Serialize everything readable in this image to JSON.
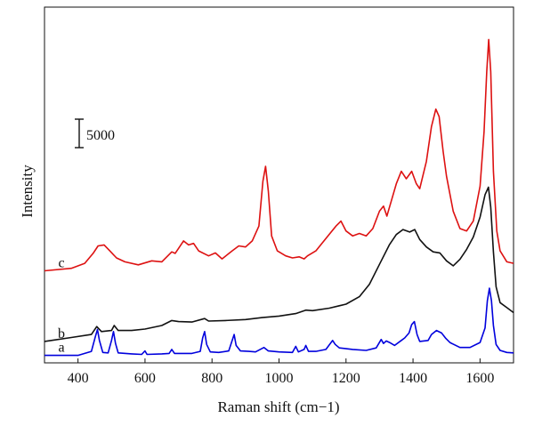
{
  "chart_data": {
    "type": "line",
    "title": "",
    "xlabel": "Raman shift (cm−1)",
    "ylabel": "Intensity",
    "xlim": [
      300,
      1700
    ],
    "x_ticks": [
      "400",
      "600",
      "800",
      "1000",
      "1200",
      "1400",
      "1600"
    ],
    "scale_bar": {
      "label": "5000",
      "value": 5000
    },
    "grid": false,
    "legend": "none",
    "series": [
      {
        "name": "a",
        "color": "#0000dd",
        "offset": 0,
        "points": [
          [
            300,
            0
          ],
          [
            400,
            0
          ],
          [
            440,
            800
          ],
          [
            452,
            3800
          ],
          [
            458,
            5200
          ],
          [
            464,
            3000
          ],
          [
            474,
            600
          ],
          [
            490,
            500
          ],
          [
            500,
            3000
          ],
          [
            506,
            4800
          ],
          [
            512,
            2400
          ],
          [
            520,
            500
          ],
          [
            560,
            300
          ],
          [
            590,
            200
          ],
          [
            600,
            900
          ],
          [
            606,
            200
          ],
          [
            650,
            300
          ],
          [
            672,
            400
          ],
          [
            680,
            1200
          ],
          [
            688,
            400
          ],
          [
            740,
            400
          ],
          [
            765,
            800
          ],
          [
            772,
            3500
          ],
          [
            778,
            4800
          ],
          [
            784,
            2200
          ],
          [
            795,
            700
          ],
          [
            820,
            600
          ],
          [
            850,
            900
          ],
          [
            862,
            3400
          ],
          [
            866,
            4200
          ],
          [
            872,
            2000
          ],
          [
            885,
            900
          ],
          [
            910,
            800
          ],
          [
            930,
            700
          ],
          [
            955,
            1600
          ],
          [
            968,
            900
          ],
          [
            1000,
            700
          ],
          [
            1040,
            600
          ],
          [
            1050,
            1800
          ],
          [
            1058,
            700
          ],
          [
            1075,
            1200
          ],
          [
            1080,
            2000
          ],
          [
            1088,
            800
          ],
          [
            1110,
            800
          ],
          [
            1140,
            1200
          ],
          [
            1160,
            3000
          ],
          [
            1168,
            2200
          ],
          [
            1180,
            1500
          ],
          [
            1195,
            1400
          ],
          [
            1220,
            1200
          ],
          [
            1260,
            1000
          ],
          [
            1290,
            1500
          ],
          [
            1305,
            3200
          ],
          [
            1312,
            2400
          ],
          [
            1320,
            2900
          ],
          [
            1330,
            2600
          ],
          [
            1345,
            2000
          ],
          [
            1365,
            3000
          ],
          [
            1375,
            3500
          ],
          [
            1388,
            4500
          ],
          [
            1396,
            6200
          ],
          [
            1404,
            6800
          ],
          [
            1412,
            4200
          ],
          [
            1420,
            2800
          ],
          [
            1445,
            3000
          ],
          [
            1455,
            4200
          ],
          [
            1470,
            5000
          ],
          [
            1485,
            4500
          ],
          [
            1498,
            3400
          ],
          [
            1510,
            2600
          ],
          [
            1540,
            1600
          ],
          [
            1570,
            1600
          ],
          [
            1600,
            2600
          ],
          [
            1615,
            5500
          ],
          [
            1622,
            11000
          ],
          [
            1628,
            13500
          ],
          [
            1634,
            11000
          ],
          [
            1640,
            6000
          ],
          [
            1648,
            2200
          ],
          [
            1660,
            1000
          ],
          [
            1680,
            600
          ],
          [
            1700,
            500
          ]
        ]
      },
      {
        "name": "b",
        "color": "#111111",
        "offset": 2800,
        "points": [
          [
            300,
            0
          ],
          [
            380,
            800
          ],
          [
            440,
            1400
          ],
          [
            456,
            3000
          ],
          [
            470,
            2000
          ],
          [
            500,
            2200
          ],
          [
            508,
            3200
          ],
          [
            520,
            2200
          ],
          [
            560,
            2200
          ],
          [
            600,
            2500
          ],
          [
            650,
            3200
          ],
          [
            680,
            4200
          ],
          [
            700,
            4000
          ],
          [
            740,
            3900
          ],
          [
            778,
            4600
          ],
          [
            790,
            4100
          ],
          [
            840,
            4200
          ],
          [
            900,
            4400
          ],
          [
            950,
            4800
          ],
          [
            1000,
            5100
          ],
          [
            1050,
            5600
          ],
          [
            1080,
            6300
          ],
          [
            1100,
            6200
          ],
          [
            1150,
            6700
          ],
          [
            1200,
            7500
          ],
          [
            1240,
            9000
          ],
          [
            1270,
            11500
          ],
          [
            1300,
            15500
          ],
          [
            1330,
            19500
          ],
          [
            1350,
            21500
          ],
          [
            1370,
            22500
          ],
          [
            1390,
            22000
          ],
          [
            1405,
            22500
          ],
          [
            1420,
            20500
          ],
          [
            1440,
            19000
          ],
          [
            1460,
            18000
          ],
          [
            1480,
            17800
          ],
          [
            1500,
            16200
          ],
          [
            1520,
            15200
          ],
          [
            1540,
            16500
          ],
          [
            1560,
            18500
          ],
          [
            1580,
            21000
          ],
          [
            1600,
            25000
          ],
          [
            1615,
            29500
          ],
          [
            1625,
            31000
          ],
          [
            1632,
            27000
          ],
          [
            1640,
            18000
          ],
          [
            1648,
            11000
          ],
          [
            1660,
            7800
          ],
          [
            1680,
            6800
          ],
          [
            1700,
            5800
          ]
        ]
      },
      {
        "name": "c",
        "color": "#dd1111",
        "offset": 17000,
        "points": [
          [
            300,
            0
          ],
          [
            380,
            500
          ],
          [
            420,
            1500
          ],
          [
            445,
            3500
          ],
          [
            460,
            5000
          ],
          [
            478,
            5200
          ],
          [
            495,
            4000
          ],
          [
            515,
            2600
          ],
          [
            540,
            1800
          ],
          [
            580,
            1200
          ],
          [
            620,
            2000
          ],
          [
            650,
            1800
          ],
          [
            680,
            3800
          ],
          [
            690,
            3500
          ],
          [
            700,
            4500
          ],
          [
            715,
            6000
          ],
          [
            730,
            5200
          ],
          [
            745,
            5500
          ],
          [
            760,
            4000
          ],
          [
            790,
            3000
          ],
          [
            810,
            3600
          ],
          [
            830,
            2400
          ],
          [
            860,
            4000
          ],
          [
            880,
            5000
          ],
          [
            900,
            4800
          ],
          [
            920,
            6000
          ],
          [
            940,
            9000
          ],
          [
            952,
            18000
          ],
          [
            960,
            21000
          ],
          [
            968,
            16000
          ],
          [
            978,
            7000
          ],
          [
            995,
            4000
          ],
          [
            1020,
            3000
          ],
          [
            1040,
            2600
          ],
          [
            1060,
            2800
          ],
          [
            1075,
            2400
          ],
          [
            1085,
            3000
          ],
          [
            1110,
            4000
          ],
          [
            1140,
            6500
          ],
          [
            1170,
            9000
          ],
          [
            1185,
            10000
          ],
          [
            1200,
            8000
          ],
          [
            1220,
            7000
          ],
          [
            1240,
            7500
          ],
          [
            1260,
            7000
          ],
          [
            1280,
            8500
          ],
          [
            1300,
            12000
          ],
          [
            1312,
            13000
          ],
          [
            1322,
            11000
          ],
          [
            1335,
            14000
          ],
          [
            1350,
            17500
          ],
          [
            1365,
            20000
          ],
          [
            1380,
            18500
          ],
          [
            1396,
            20000
          ],
          [
            1410,
            17500
          ],
          [
            1420,
            16500
          ],
          [
            1440,
            22000
          ],
          [
            1455,
            29000
          ],
          [
            1468,
            32500
          ],
          [
            1478,
            31000
          ],
          [
            1490,
            24000
          ],
          [
            1500,
            19000
          ],
          [
            1520,
            12000
          ],
          [
            1540,
            8500
          ],
          [
            1560,
            8000
          ],
          [
            1580,
            10000
          ],
          [
            1600,
            17000
          ],
          [
            1612,
            28000
          ],
          [
            1620,
            40000
          ],
          [
            1626,
            46500
          ],
          [
            1632,
            40000
          ],
          [
            1640,
            20000
          ],
          [
            1650,
            8000
          ],
          [
            1660,
            4000
          ],
          [
            1680,
            1800
          ],
          [
            1700,
            1500
          ]
        ]
      }
    ]
  }
}
